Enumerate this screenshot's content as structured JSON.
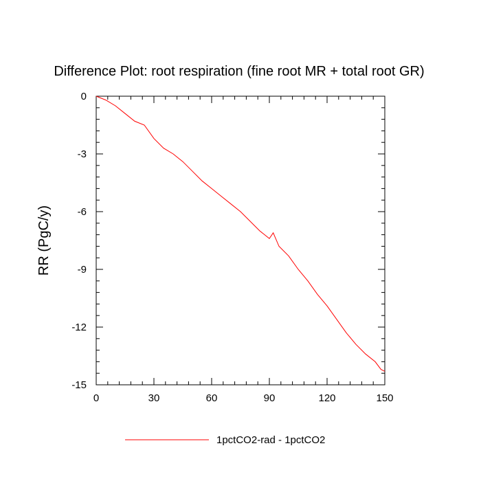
{
  "chart_data": {
    "type": "line",
    "title": "Difference Plot: root respiration (fine root MR + total root GR)",
    "xlabel": "",
    "ylabel": "RR  (PgC/y)",
    "xlim": [
      0,
      150
    ],
    "ylim": [
      -15,
      0
    ],
    "x_ticks": [
      "0",
      "30",
      "60",
      "90",
      "120",
      "150"
    ],
    "y_ticks": [
      "0",
      "-3",
      "-6",
      "-9",
      "-12",
      "-15"
    ],
    "grid": false,
    "legend_position": "bottom",
    "series": [
      {
        "name": "1pctCO2-rad - 1pctCO2",
        "color": "#ff0000",
        "x": [
          0,
          5,
          10,
          15,
          20,
          25,
          30,
          35,
          40,
          45,
          50,
          55,
          60,
          65,
          70,
          75,
          80,
          85,
          90,
          92,
          95,
          100,
          105,
          110,
          115,
          120,
          125,
          130,
          135,
          140,
          145,
          148,
          150
        ],
        "y": [
          0,
          -0.2,
          -0.5,
          -0.9,
          -1.3,
          -1.5,
          -2.2,
          -2.7,
          -3.0,
          -3.4,
          -3.9,
          -4.4,
          -4.8,
          -5.2,
          -5.6,
          -6.0,
          -6.5,
          -7.0,
          -7.4,
          -7.1,
          -7.8,
          -8.3,
          -9.0,
          -9.6,
          -10.3,
          -10.9,
          -11.6,
          -12.3,
          -12.9,
          -13.4,
          -13.8,
          -14.2,
          -14.3
        ]
      }
    ]
  }
}
